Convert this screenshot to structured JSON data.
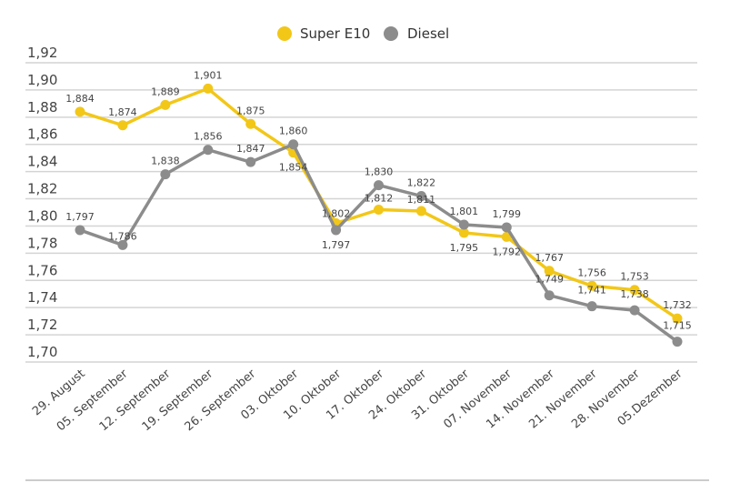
{
  "chart_data": {
    "type": "line",
    "title": "",
    "xlabel": "",
    "ylabel": "",
    "ylim": [
      1.7,
      1.92
    ],
    "yticks": [
      "1,92",
      "1,90",
      "1,88",
      "1,86",
      "1,84",
      "1,82",
      "1,80",
      "1,78",
      "1,76",
      "1,74",
      "1,72",
      "1,70"
    ],
    "ytick_values": [
      1.92,
      1.9,
      1.88,
      1.86,
      1.84,
      1.82,
      1.8,
      1.78,
      1.76,
      1.74,
      1.72,
      1.7
    ],
    "grid": true,
    "legend_position": "top-center",
    "categories": [
      "29. August",
      "05. September",
      "12. September",
      "19. September",
      "26. September",
      "03. Oktober",
      "10. Oktober",
      "17. Oktober",
      "24. Oktober",
      "31. Oktober",
      "07. November",
      "14. November",
      "21. November",
      "28. November",
      "05.Dezember"
    ],
    "series": [
      {
        "name": "Super E10",
        "color": "#f2c718",
        "values": [
          1.884,
          1.874,
          1.889,
          1.901,
          1.875,
          1.854,
          1.802,
          1.812,
          1.811,
          1.795,
          1.792,
          1.767,
          1.756,
          1.753,
          1.732
        ],
        "labels": [
          "1,884",
          "1,874",
          "1,889",
          "1,901",
          "1,875",
          "1,854",
          "1,802",
          "1,812",
          "1,811",
          "1,795",
          "1,792",
          "1,767",
          "1,756",
          "1,753",
          "1,732"
        ]
      },
      {
        "name": "Diesel",
        "color": "#8c8c8c",
        "values": [
          1.797,
          1.786,
          1.838,
          1.856,
          1.847,
          1.86,
          1.797,
          1.83,
          1.822,
          1.801,
          1.799,
          1.749,
          1.741,
          1.738,
          1.715
        ],
        "labels": [
          "1,797",
          "1,786",
          "1,838",
          "1,856",
          "1,847",
          "1,860",
          "1,797",
          "1,830",
          "1,822",
          "1,801",
          "1,799",
          "1,749",
          "1,741",
          "1,738",
          "1,715"
        ]
      }
    ]
  }
}
